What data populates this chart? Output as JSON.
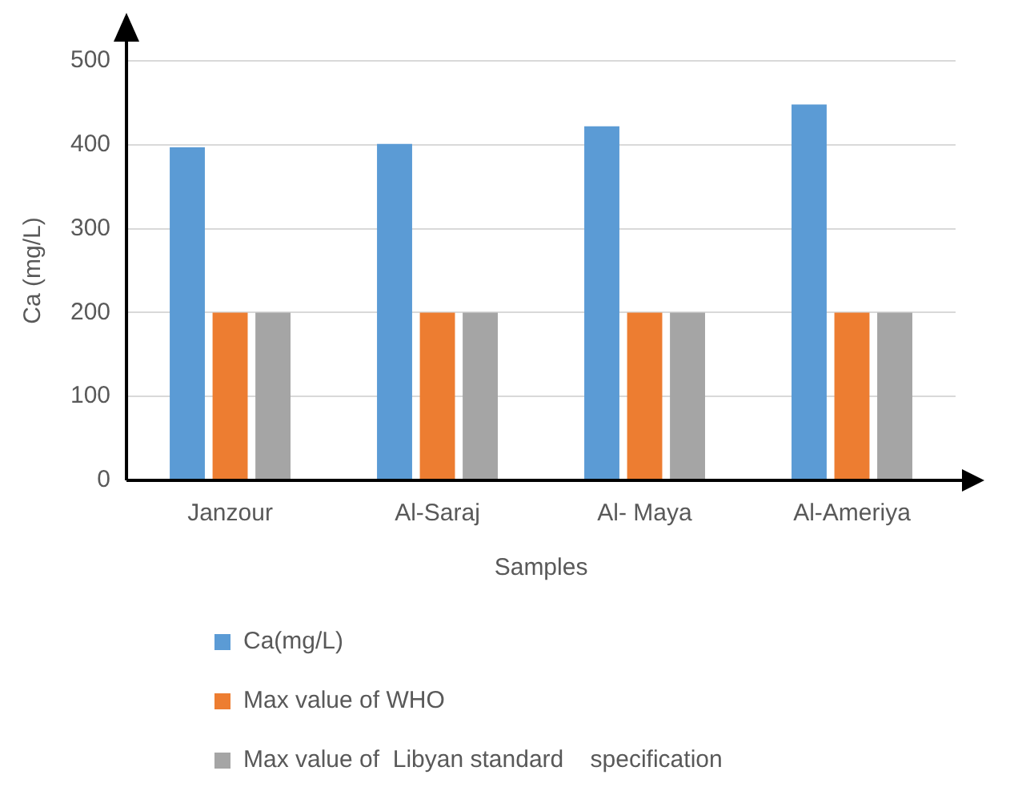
{
  "chart_data": {
    "type": "bar",
    "xlabel": "Samples",
    "ylabel": "Ca (mg/L)",
    "categories": [
      "Janzour",
      "Al-Saraj",
      "Al- Maya",
      "Al-Ameriya"
    ],
    "series": [
      {
        "name": "Ca(mg/L)",
        "color": "#5b9bd5",
        "values": [
          397,
          401,
          422,
          448
        ]
      },
      {
        "name": "Max value of WHO",
        "color": "#ed7d31",
        "values": [
          200,
          200,
          200,
          200
        ]
      },
      {
        "name": "Max value of  Libyan standard    specification",
        "color": "#a5a5a5",
        "values": [
          200,
          200,
          200,
          200
        ]
      }
    ],
    "ylim": [
      0,
      500
    ],
    "yticks": [
      0,
      100,
      200,
      300,
      400,
      500
    ],
    "grid": "y",
    "legend": "bottom"
  }
}
